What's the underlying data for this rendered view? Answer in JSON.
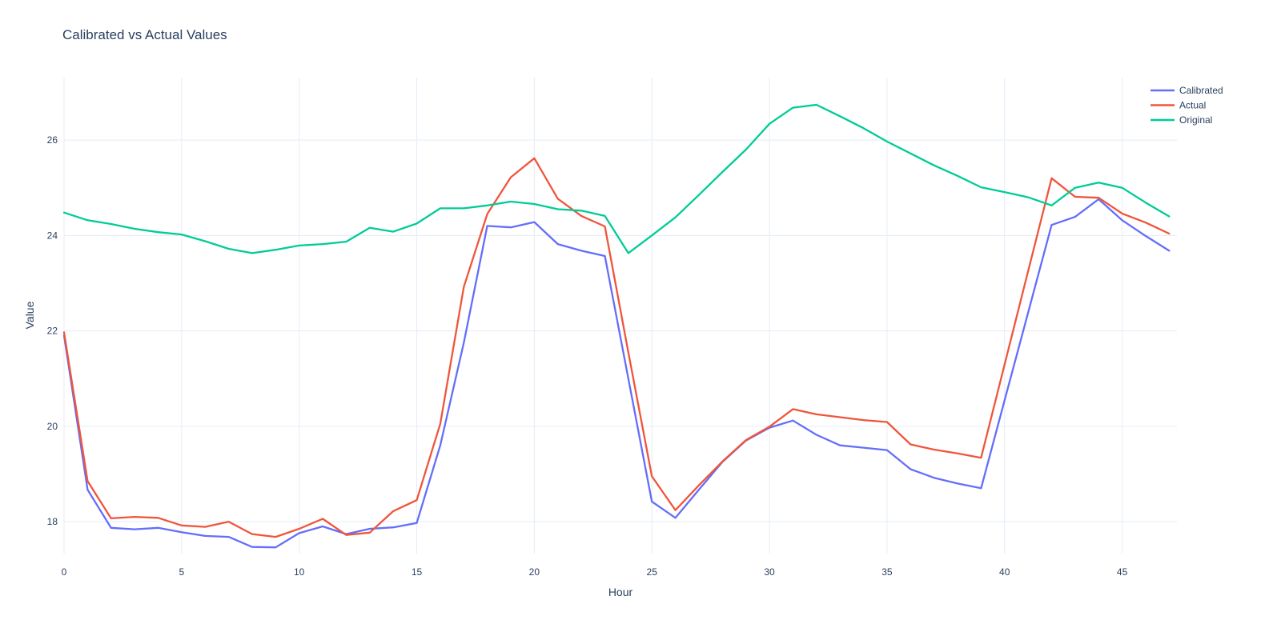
{
  "title": "Calibrated vs Actual Values",
  "axis": {
    "x_label": "Hour",
    "y_label": "Value"
  },
  "legend": {
    "entries": [
      {
        "label": "Calibrated",
        "color": "#636efa"
      },
      {
        "label": "Actual",
        "color": "#ef553b"
      },
      {
        "label": "Original",
        "color": "#00cc96"
      }
    ]
  },
  "colors": {
    "background": "#ffffff",
    "grid": "#e5ecf6",
    "text": "#2a3f5f",
    "calibrated": "#636efa",
    "actual": "#ef553b",
    "original": "#00cc96"
  },
  "chart_data": {
    "type": "line",
    "title": "Calibrated vs Actual Values",
    "xlabel": "Hour",
    "ylabel": "Value",
    "grid": true,
    "legend_position": "right",
    "xticks": [
      0,
      5,
      10,
      15,
      20,
      25,
      30,
      35,
      40,
      45
    ],
    "yticks": [
      18,
      20,
      22,
      24,
      26
    ],
    "xlim": [
      0,
      47.33
    ],
    "ylim": [
      17.33,
      27.31
    ],
    "x": [
      0,
      1,
      2,
      3,
      4,
      5,
      6,
      7,
      8,
      9,
      10,
      11,
      12,
      13,
      14,
      15,
      16,
      17,
      18,
      19,
      20,
      21,
      22,
      23,
      24,
      25,
      26,
      27,
      28,
      29,
      30,
      31,
      32,
      33,
      34,
      35,
      36,
      37,
      38,
      39,
      40,
      41,
      42,
      43,
      44,
      45,
      46,
      47
    ],
    "series": [
      {
        "name": "Calibrated",
        "color": "#636efa",
        "values": [
          21.9,
          18.67,
          17.87,
          17.84,
          17.87,
          17.78,
          17.7,
          17.68,
          17.47,
          17.46,
          17.76,
          17.9,
          17.74,
          17.85,
          17.88,
          17.97,
          19.6,
          21.75,
          24.2,
          24.17,
          24.28,
          23.82,
          23.68,
          23.57,
          21.0,
          18.42,
          18.08,
          18.67,
          19.25,
          19.7,
          19.97,
          20.12,
          19.82,
          19.6,
          19.55,
          19.5,
          19.1,
          18.92,
          18.8,
          18.7,
          20.54,
          22.38,
          24.22,
          24.39,
          24.76,
          24.32,
          23.99,
          23.68
        ]
      },
      {
        "name": "Actual",
        "color": "#ef553b",
        "values": [
          21.97,
          18.85,
          18.07,
          18.1,
          18.08,
          17.92,
          17.89,
          18.0,
          17.74,
          17.68,
          17.85,
          18.06,
          17.72,
          17.77,
          18.22,
          18.45,
          20.05,
          22.92,
          24.45,
          25.22,
          25.62,
          24.77,
          24.41,
          24.19,
          21.55,
          18.95,
          18.24,
          18.76,
          19.26,
          19.71,
          19.99,
          20.36,
          20.25,
          20.19,
          20.13,
          20.09,
          19.62,
          19.51,
          19.43,
          19.34,
          21.29,
          23.25,
          25.2,
          24.81,
          24.79,
          24.46,
          24.27,
          24.04
        ]
      },
      {
        "name": "Original",
        "color": "#00cc96",
        "values": [
          24.48,
          24.32,
          24.24,
          24.14,
          24.07,
          24.02,
          23.88,
          23.72,
          23.63,
          23.7,
          23.79,
          23.82,
          23.87,
          24.16,
          24.08,
          24.25,
          24.57,
          24.57,
          24.63,
          24.71,
          24.66,
          24.55,
          24.52,
          24.41,
          23.63,
          24.0,
          24.38,
          24.85,
          25.33,
          25.8,
          26.34,
          26.68,
          26.74,
          26.5,
          26.25,
          25.97,
          25.72,
          25.47,
          25.25,
          25.01,
          24.91,
          24.8,
          24.63,
          25.0,
          25.11,
          25.0,
          24.69,
          24.4
        ]
      }
    ]
  }
}
